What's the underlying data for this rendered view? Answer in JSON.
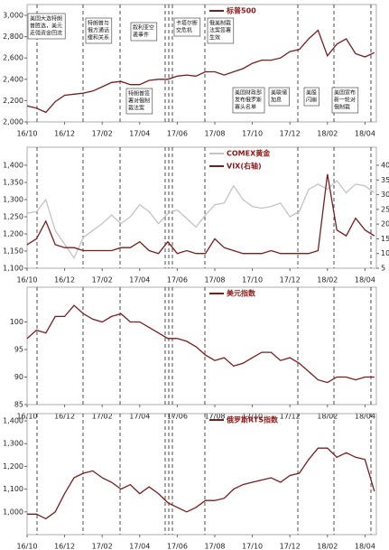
{
  "chart_data": [
    {
      "type": "line",
      "categories": [
        "16/10",
        null,
        null,
        null,
        "16/12",
        null,
        null,
        null,
        "17/02",
        null,
        null,
        null,
        "17/04",
        null,
        null,
        null,
        "17/06",
        null,
        null,
        null,
        "17/08",
        null,
        null,
        null,
        "17/10",
        null,
        null,
        null,
        "17/12",
        null,
        null,
        null,
        "18/02",
        null,
        null,
        null,
        "18/04",
        null
      ],
      "series": [
        {
          "name": "标普500",
          "color": "#7b1c1c",
          "values": [
            2150,
            2130,
            2090,
            2190,
            2250,
            2260,
            2270,
            2290,
            2330,
            2370,
            2380,
            2350,
            2350,
            2390,
            2400,
            2400,
            2430,
            2440,
            2430,
            2470,
            2470,
            2440,
            2470,
            2500,
            2550,
            2580,
            2580,
            2600,
            2660,
            2680,
            2780,
            2860,
            2620,
            2730,
            2780,
            2640,
            2610,
            2650
          ]
        }
      ],
      "ylim": [
        2000,
        3000
      ],
      "yticks": [
        {
          "value": 2000,
          "label": "2,000"
        },
        {
          "value": 2200,
          "label": "2,200"
        },
        {
          "value": 2400,
          "label": "2,400"
        },
        {
          "value": 2600,
          "label": "2,600"
        },
        {
          "value": 2800,
          "label": "2,800"
        },
        {
          "value": 3000,
          "label": "3,000"
        }
      ],
      "annotations": [
        [
          "美国大选特朗",
          "普胜选，美元",
          "走强资金回流"
        ],
        [
          "特朗普与",
          "俄方通话",
          "缓和关系"
        ],
        [
          "叙利亚空",
          "袭事件"
        ],
        [
          "卡塔尔断",
          "交危机"
        ],
        [
          "俄美制裁",
          "法案签署",
          "生效"
        ],
        [
          "特朗普签",
          "署对俄制",
          "裁法案"
        ],
        [
          "美国财政部",
          "发布俄罗斯",
          "寡头名单"
        ],
        [
          "美联储",
          "加息"
        ],
        [
          "美股",
          "闪崩"
        ],
        [
          "美国宣布",
          "新一轮对",
          "俄制裁"
        ]
      ]
    },
    {
      "type": "line",
      "categories": [
        "16/10",
        null,
        null,
        null,
        "16/12",
        null,
        null,
        null,
        "17/02",
        null,
        null,
        null,
        "17/04",
        null,
        null,
        null,
        "17/06",
        null,
        null,
        null,
        "17/08",
        null,
        null,
        null,
        "17/10",
        null,
        null,
        null,
        "17/12",
        null,
        null,
        null,
        "18/02",
        null,
        null,
        null,
        "18/04",
        null
      ],
      "series": [
        {
          "name": "COMEX黄金",
          "color": "#c4c4c4",
          "values": [
            1260,
            1265,
            1300,
            1210,
            1170,
            1130,
            1190,
            1210,
            1230,
            1255,
            1230,
            1250,
            1285,
            1265,
            1230,
            1260,
            1270,
            1245,
            1220,
            1255,
            1285,
            1290,
            1340,
            1300,
            1280,
            1275,
            1280,
            1290,
            1250,
            1265,
            1330,
            1345,
            1330,
            1355,
            1320,
            1345,
            1340,
            1320
          ]
        },
        {
          "name": "VIX(右轴)",
          "color": "#7b1c1c",
          "axis": "y2",
          "values": [
            13,
            15,
            21,
            13,
            12,
            12,
            11,
            11,
            11,
            11,
            12,
            12,
            14,
            11,
            10,
            14,
            10,
            11,
            10,
            10,
            15,
            12,
            11,
            10,
            10,
            10,
            11,
            10,
            10,
            10,
            10,
            11,
            37,
            18,
            16,
            22,
            18,
            16
          ]
        }
      ],
      "ylim": [
        1100,
        1400
      ],
      "yticks": [
        {
          "value": 1100,
          "label": "1,100"
        },
        {
          "value": 1150,
          "label": "1,150"
        },
        {
          "value": 1200,
          "label": "1,200"
        },
        {
          "value": 1250,
          "label": "1,250"
        },
        {
          "value": 1300,
          "label": "1,300"
        },
        {
          "value": 1350,
          "label": "1,350"
        },
        {
          "value": 1400,
          "label": "1,400"
        }
      ],
      "y2lim": [
        5,
        40
      ],
      "y2ticks": [
        5,
        10,
        15,
        20,
        25,
        30,
        35,
        40
      ]
    },
    {
      "type": "line",
      "categories": [
        "16/10",
        null,
        null,
        null,
        "16/12",
        null,
        null,
        null,
        "17/02",
        null,
        null,
        null,
        "17/04",
        null,
        null,
        null,
        "17/06",
        null,
        null,
        null,
        "17/08",
        null,
        null,
        null,
        "17/10",
        null,
        null,
        null,
        "17/12",
        null,
        null,
        null,
        "18/02",
        null,
        null,
        null,
        "18/04",
        null
      ],
      "series": [
        {
          "name": "美元指数",
          "color": "#7b1c1c",
          "values": [
            97,
            98.5,
            98,
            101,
            101,
            103,
            101.5,
            100.5,
            100,
            101,
            101.5,
            100,
            100,
            99,
            98,
            97,
            97,
            96.5,
            95.5,
            94,
            93,
            93.5,
            92,
            92.5,
            93.5,
            94.5,
            94.5,
            93,
            93.5,
            92.5,
            91,
            89.5,
            89,
            90,
            90,
            89.5,
            90,
            90
          ]
        }
      ],
      "ylim": [
        85,
        105
      ],
      "yticks": [
        85,
        90,
        95,
        100
      ]
    },
    {
      "type": "line",
      "categories": [
        "16/10",
        null,
        null,
        null,
        "16/12",
        null,
        null,
        null,
        "17/02",
        null,
        null,
        null,
        "17/04",
        null,
        null,
        null,
        "17/06",
        null,
        null,
        null,
        "17/08",
        null,
        null,
        null,
        "17/10",
        null,
        null,
        null,
        "17/12",
        null,
        null,
        null,
        "18/02",
        null,
        null,
        null,
        "18/04",
        null
      ],
      "series": [
        {
          "name": "俄罗斯RTS指数",
          "color": "#7b1c1c",
          "values": [
            990,
            990,
            970,
            1000,
            1080,
            1150,
            1170,
            1180,
            1150,
            1130,
            1100,
            1120,
            1080,
            1110,
            1080,
            1040,
            1020,
            1000,
            1020,
            1050,
            1050,
            1060,
            1100,
            1120,
            1130,
            1140,
            1150,
            1130,
            1160,
            1170,
            1230,
            1280,
            1280,
            1240,
            1260,
            1240,
            1230,
            1090
          ]
        }
      ],
      "ylim": [
        900,
        1400
      ],
      "yticks": [
        {
          "value": 1000,
          "label": "1,000"
        },
        {
          "value": 1100,
          "label": "1,100"
        },
        {
          "value": 1200,
          "label": "1,200"
        },
        {
          "value": 1300,
          "label": "1,300"
        },
        {
          "value": 1400,
          "label": "1,400"
        }
      ]
    }
  ]
}
